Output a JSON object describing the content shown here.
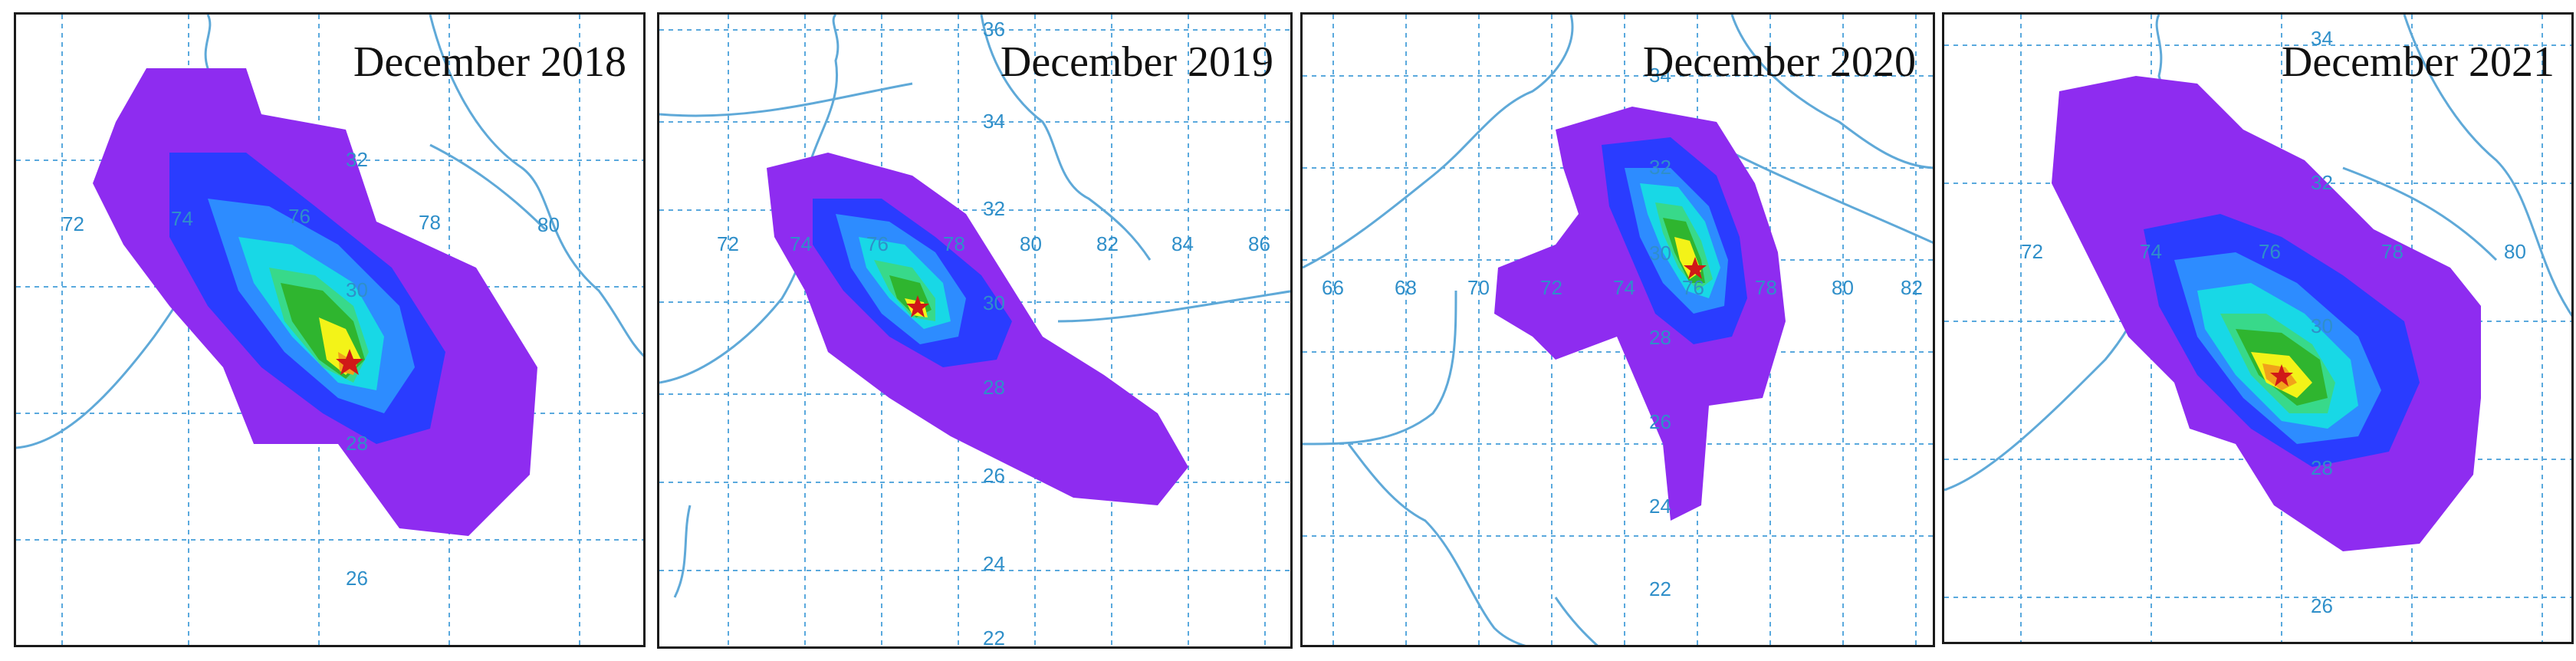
{
  "colors": {
    "grid": "#5aa9dd",
    "label": "#2f8fc9",
    "border": "#5fa9d8",
    "plume_levels": [
      "#8e2cf0",
      "#7a1fff",
      "#2a3cff",
      "#2d8cff",
      "#18d8e6",
      "#38d98a",
      "#2fb52f",
      "#f3f318",
      "#f1a21a",
      "#e8391c"
    ],
    "star": "#d01818"
  },
  "panels": [
    {
      "title": "December 2018",
      "lon_labels": [
        "72",
        "74",
        "76",
        "78",
        "80"
      ],
      "lat_labels": [
        "32",
        "30",
        "28",
        "26"
      ]
    },
    {
      "title": "December 2019",
      "lon_labels": [
        "72",
        "74",
        "76",
        "78",
        "80",
        "82",
        "84",
        "86"
      ],
      "lat_labels": [
        "36",
        "34",
        "32",
        "30",
        "28",
        "26",
        "24",
        "22"
      ]
    },
    {
      "title": "December 2020",
      "lon_labels": [
        "66",
        "68",
        "70",
        "72",
        "74",
        "76",
        "78",
        "80",
        "82"
      ],
      "lat_labels": [
        "34",
        "32",
        "30",
        "28",
        "26",
        "24",
        "22"
      ]
    },
    {
      "title": "December 2021",
      "lon_labels": [
        "72",
        "74",
        "76",
        "78",
        "80"
      ],
      "lat_labels": [
        "34",
        "32",
        "30",
        "28",
        "26"
      ]
    }
  ]
}
